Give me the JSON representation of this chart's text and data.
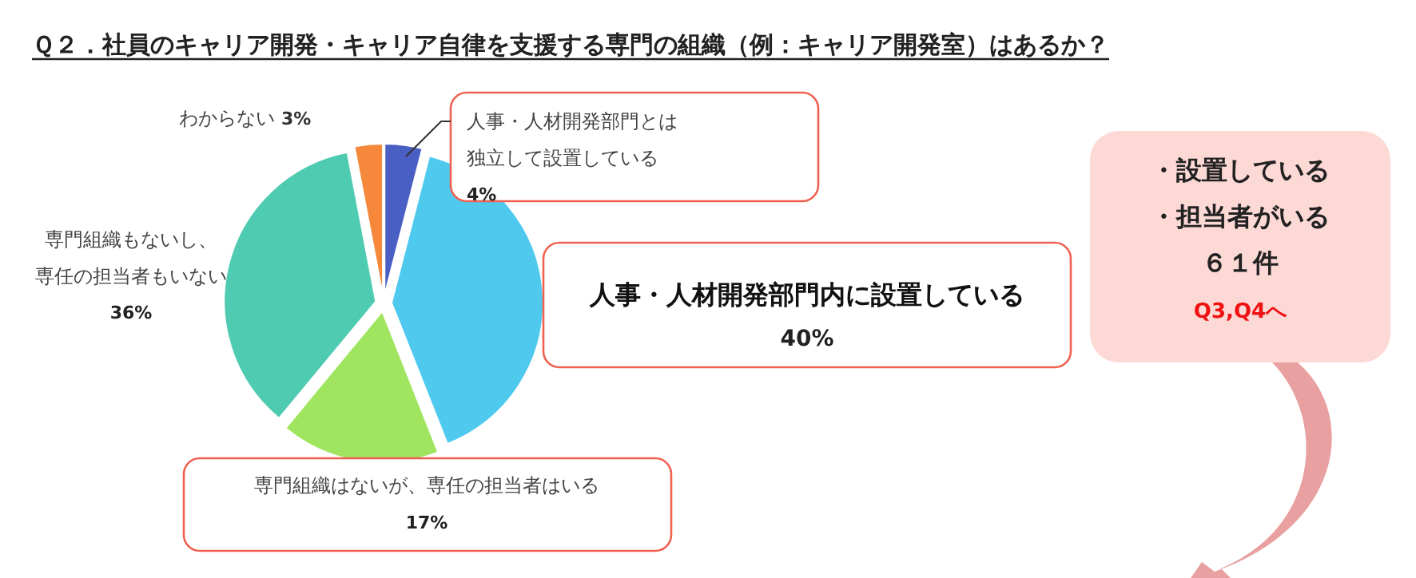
{
  "chart_data": {
    "type": "pie",
    "title": "Ｑ２．社員のキャリア開発・キャリア自律を支援する専門の組織（例：キャリア開発室）はあるか？",
    "categories": [
      "人事・人材開発部門とは独立して設置している",
      "人事・人材開発部門内に設置している",
      "専門組織はないが、専任の担当者はいる",
      "専門組織もないし、専任の担当者もいない",
      "わからない"
    ],
    "values": [
      4,
      40,
      17,
      36,
      3
    ],
    "value_labels": [
      "4%",
      "40%",
      "17%",
      "36%",
      "3%"
    ],
    "colors": [
      "#4a5fc4",
      "#4fc9ee",
      "#a0e55f",
      "#4ecbb0",
      "#f5883a"
    ],
    "annotations": [
      "・設置している",
      "・担当者がいる",
      "６１件",
      "Q3,Q4へ"
    ]
  }
}
